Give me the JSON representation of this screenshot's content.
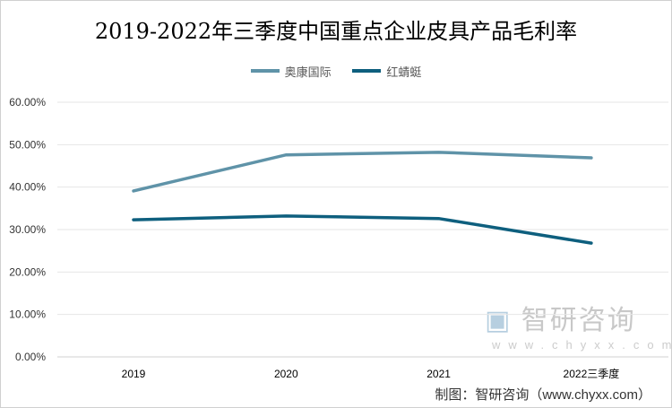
{
  "chart_data": {
    "type": "line",
    "title": "2019-2022年三季度中国重点企业皮具产品毛利率",
    "categories": [
      "2019",
      "2020",
      "2021",
      "2022三季度"
    ],
    "series": [
      {
        "name": "奥康国际",
        "color": "#5f93a8",
        "values": [
          39.1,
          47.6,
          48.2,
          46.9
        ]
      },
      {
        "name": "红蜻蜓",
        "color": "#0e5f7e",
        "values": [
          32.3,
          33.2,
          32.6,
          26.8
        ]
      }
    ],
    "yticks": [
      "0.00%",
      "10.00%",
      "20.00%",
      "30.00%",
      "40.00%",
      "50.00%",
      "60.00%"
    ],
    "ylim": [
      0,
      60
    ],
    "grid": true,
    "legend": "top"
  },
  "watermark": {
    "name": "智研咨询",
    "url": "www.chyxx.com"
  },
  "credit": "制图：智研咨询（www.chyxx.com）"
}
